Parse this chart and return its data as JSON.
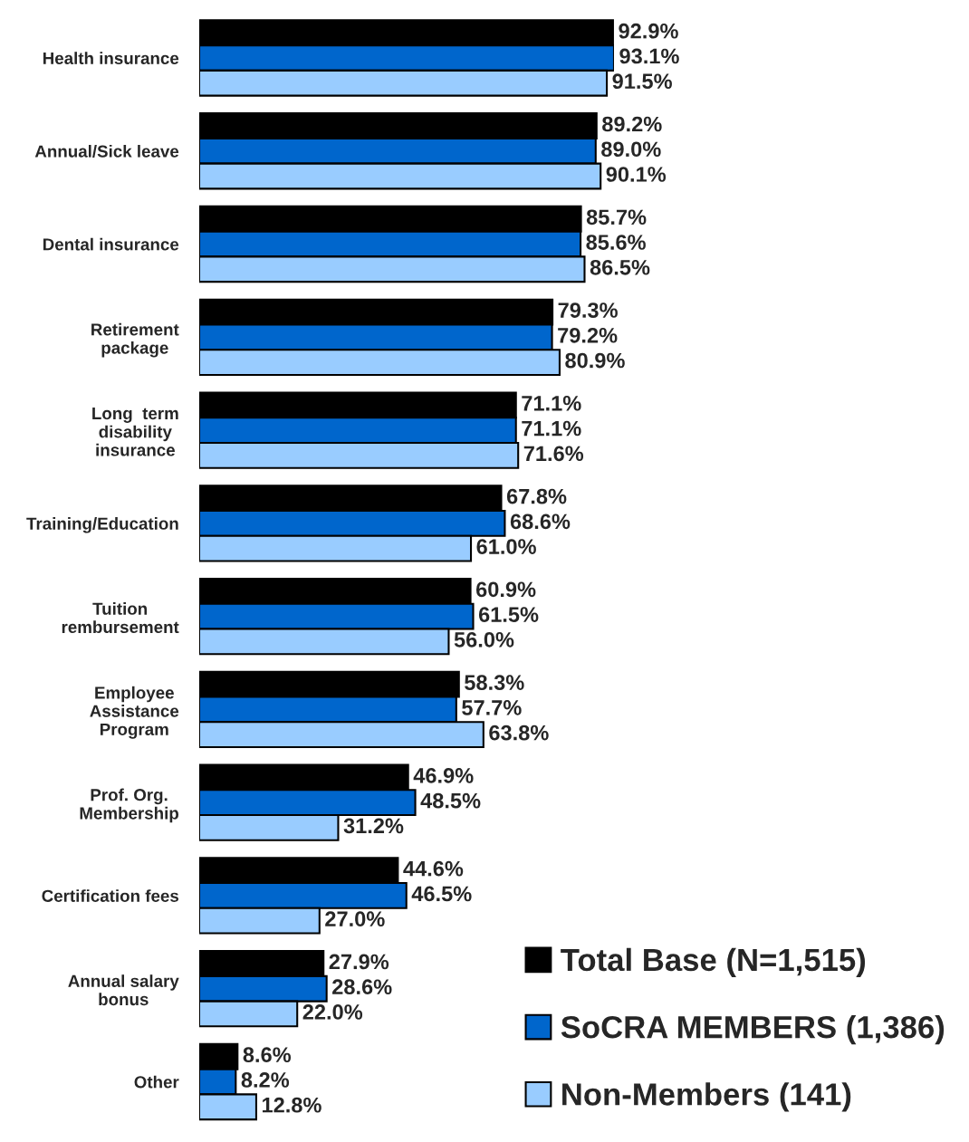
{
  "chart_data": {
    "type": "bar",
    "orientation": "horizontal",
    "legend": "bottom right",
    "categories": [
      "Health insurance",
      "Annual/Sick leave",
      "Dental insurance",
      "Retirement\npackage",
      "Long  term\ndisability\ninsurance",
      "Training/Education",
      "Tuition\nrembursement",
      "Employee\nAssistance\nProgram",
      "Prof. Org.\nMembership",
      "Certification fees",
      "Annual salary\nbonus",
      "Other"
    ],
    "series": [
      {
        "name": "Total Base (N=1,515)",
        "color": "#000000",
        "values": [
          92.9,
          89.2,
          85.7,
          79.3,
          71.1,
          67.8,
          60.9,
          58.3,
          46.9,
          44.6,
          27.9,
          8.6
        ],
        "value_labels": [
          "92.9%",
          "89.2%",
          "85.7%",
          "79.3%",
          "71.1%",
          "67.8%",
          "60.9%",
          "58.3%",
          "46.9%",
          "44.6%",
          "27.9%",
          "8.6%"
        ]
      },
      {
        "name": "SoCRA MEMBERS (1,386)",
        "color": "#0066cc",
        "values": [
          93.1,
          89.0,
          85.6,
          79.2,
          71.1,
          68.6,
          61.5,
          57.7,
          48.5,
          46.5,
          28.6,
          8.2
        ],
        "value_labels": [
          "93.1%",
          "89.0%",
          "85.6%",
          "79.2%",
          "71.1%",
          "68.6%",
          "61.5%",
          "57.7%",
          "48.5%",
          "46.5%",
          "28.6%",
          "8.2%"
        ]
      },
      {
        "name": "Non-Members (141)",
        "color": "#99ccff",
        "values": [
          91.5,
          90.1,
          86.5,
          80.9,
          71.6,
          61.0,
          56.0,
          63.8,
          31.2,
          27.0,
          22.0,
          12.8
        ],
        "value_labels": [
          "91.5%",
          "90.1%",
          "86.5%",
          "80.9%",
          "71.6%",
          "61.0%",
          "56.0%",
          "63.8%",
          "31.2%",
          "27.0%",
          "22.0%",
          "12.8%"
        ]
      }
    ]
  }
}
